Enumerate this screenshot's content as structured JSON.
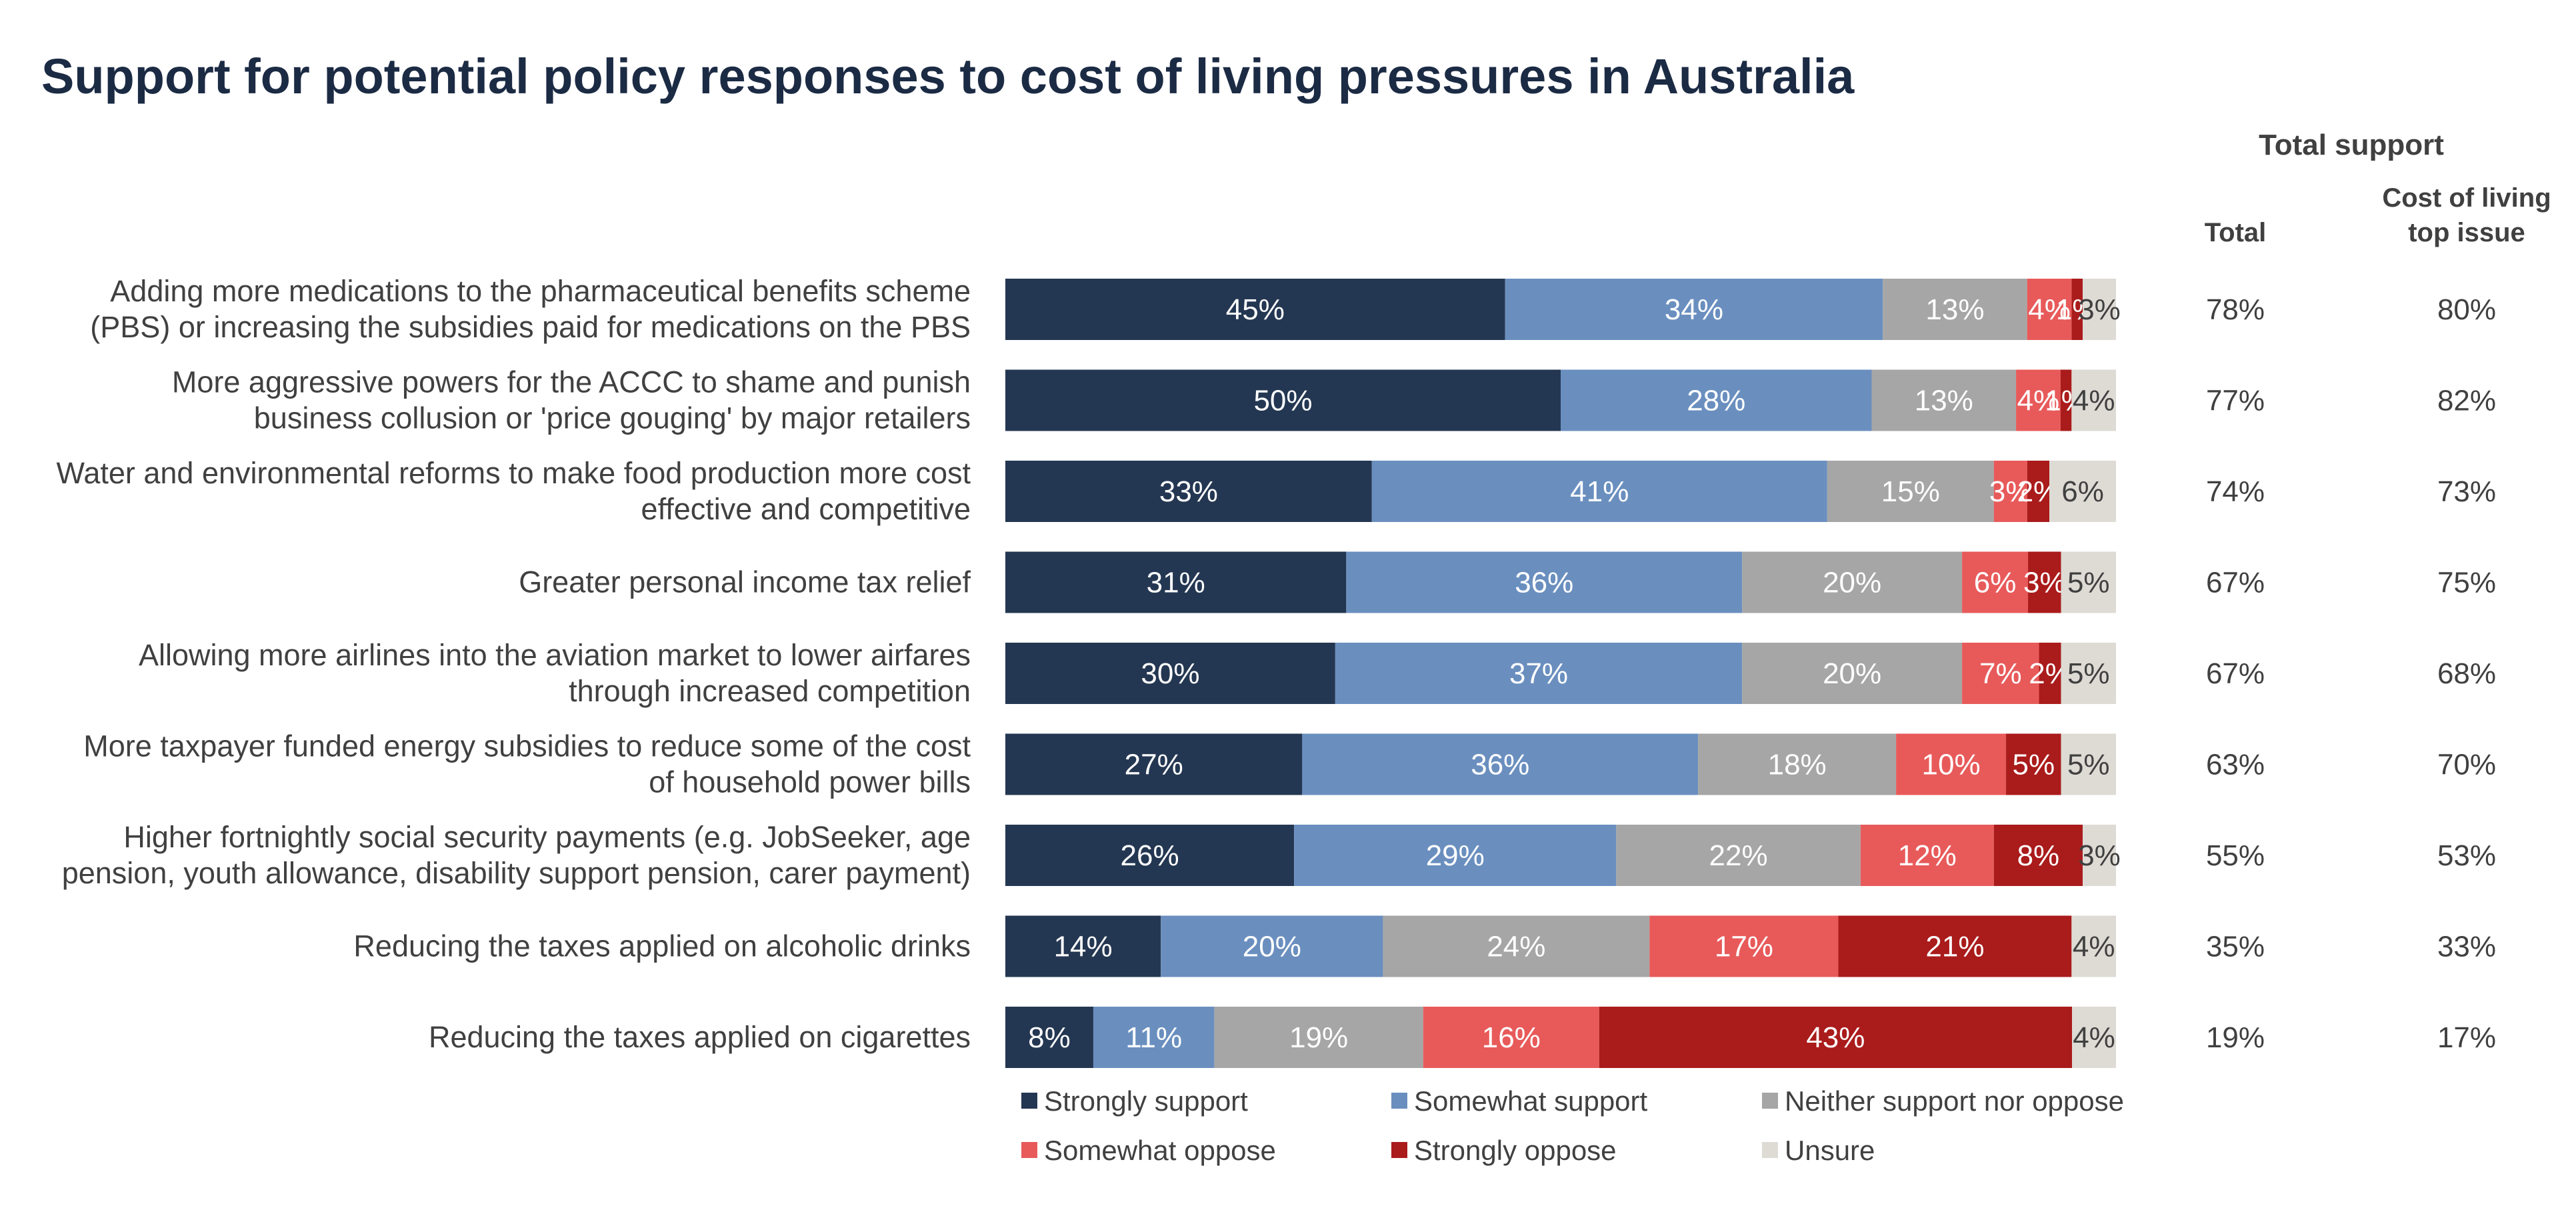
{
  "chart_data": {
    "type": "bar",
    "orientation": "horizontal",
    "stacked": true,
    "title": "Support for potential policy responses to cost of living pressures in Australia",
    "categories": [
      [
        "Adding more medications to the pharmaceutical benefits scheme",
        "(PBS) or increasing the subsidies paid for medications on the PBS"
      ],
      [
        "More aggressive powers for the ACCC to shame and punish",
        "business collusion or 'price gouging' by major retailers"
      ],
      [
        "Water and environmental reforms to make food production more cost",
        "effective and competitive"
      ],
      [
        "Greater personal income tax relief"
      ],
      [
        "Allowing more airlines into the aviation market to lower airfares",
        "through increased competition"
      ],
      [
        "More taxpayer funded energy subsidies to reduce some of the cost",
        "of household power bills"
      ],
      [
        "Higher fortnightly social security payments (e.g. JobSeeker, age",
        "pension, youth allowance, disability support pension, carer payment)"
      ],
      [
        "Reducing the taxes applied on alcoholic drinks"
      ],
      [
        "Reducing the taxes applied on cigarettes"
      ]
    ],
    "series": [
      {
        "name": "Strongly support",
        "color": "#243752",
        "label_color": "#ffffff",
        "values": [
          45,
          50,
          33,
          31,
          30,
          27,
          26,
          14,
          8
        ]
      },
      {
        "name": "Somewhat support",
        "color": "#6a8fbf",
        "label_color": "#ffffff",
        "values": [
          34,
          28,
          41,
          36,
          37,
          36,
          29,
          20,
          11
        ]
      },
      {
        "name": "Neither support nor oppose",
        "color": "#a6a6a6",
        "label_color": "#ffffff",
        "values": [
          13,
          13,
          15,
          20,
          20,
          18,
          22,
          24,
          19
        ]
      },
      {
        "name": "Somewhat oppose",
        "color": "#e85a5a",
        "label_color": "#ffffff",
        "values": [
          4,
          4,
          3,
          6,
          7,
          10,
          12,
          17,
          16
        ]
      },
      {
        "name": "Strongly oppose",
        "color": "#aa1b1b",
        "label_color": "#ffffff",
        "values": [
          1,
          1,
          2,
          3,
          2,
          5,
          8,
          21,
          43
        ]
      },
      {
        "name": "Unsure",
        "color": "#dedbd5",
        "label_color": "#404040",
        "values": [
          3,
          4,
          6,
          5,
          5,
          5,
          3,
          4,
          4
        ]
      }
    ],
    "xlim": [
      0,
      100
    ],
    "grid": false,
    "legend_position": "bottom",
    "total_support": {
      "header": "Total support",
      "columns": [
        {
          "header": [
            "Total"
          ],
          "values": [
            "78%",
            "77%",
            "74%",
            "67%",
            "67%",
            "63%",
            "55%",
            "35%",
            "19%"
          ]
        },
        {
          "header": [
            "Cost of living",
            "top issue"
          ],
          "values": [
            "80%",
            "82%",
            "73%",
            "75%",
            "68%",
            "70%",
            "53%",
            "33%",
            "17%"
          ],
          "highlight": [
            false,
            false,
            false,
            true,
            false,
            true,
            false,
            false,
            false
          ]
        }
      ],
      "highlight_color": "#1aa04a",
      "text_color": "#404040"
    }
  }
}
